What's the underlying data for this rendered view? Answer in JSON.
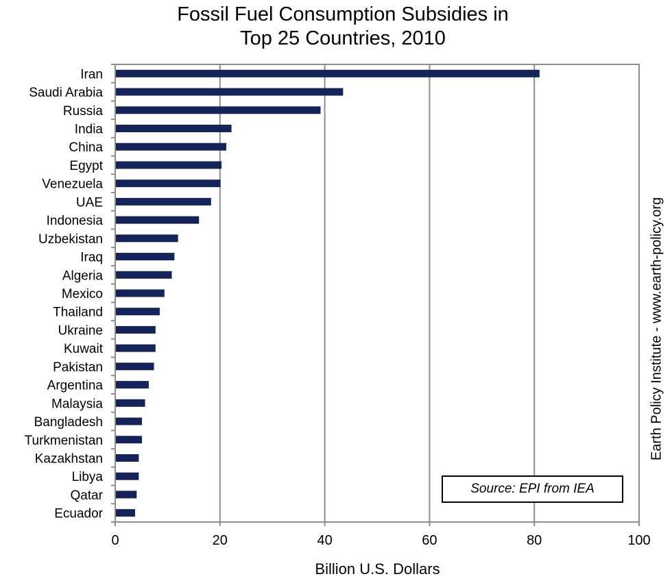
{
  "chart_data": {
    "type": "bar",
    "orientation": "horizontal",
    "title": [
      "Fossil Fuel Consumption Subsidies in",
      "Top 25 Countries, 2010"
    ],
    "xlabel": "Billion U.S. Dollars",
    "ylabel": "",
    "xlim": [
      0,
      100
    ],
    "xticks": [
      0,
      20,
      40,
      60,
      80,
      100
    ],
    "grid": true,
    "categories": [
      "Iran",
      "Saudi Arabia",
      "Russia",
      "India",
      "China",
      "Egypt",
      "Venezuela",
      "UAE",
      "Indonesia",
      "Uzbekistan",
      "Iraq",
      "Algeria",
      "Mexico",
      "Thailand",
      "Ukraine",
      "Kuwait",
      "Pakistan",
      "Argentina",
      "Malaysia",
      "Bangladesh",
      "Turkmenistan",
      "Kazakhstan",
      "Libya",
      "Qatar",
      "Ecuador"
    ],
    "values": [
      81,
      43.5,
      39.2,
      22.2,
      21.2,
      20.3,
      20.1,
      18.3,
      16.0,
      12.0,
      11.3,
      10.8,
      9.4,
      8.5,
      7.7,
      7.7,
      7.4,
      6.4,
      5.7,
      5.1,
      5.1,
      4.5,
      4.5,
      4.1,
      3.8
    ],
    "bar_color": "#14245a",
    "annotation": "Source: EPI from IEA",
    "side_label": "Earth Policy Institute - www.earth-policy.org"
  }
}
